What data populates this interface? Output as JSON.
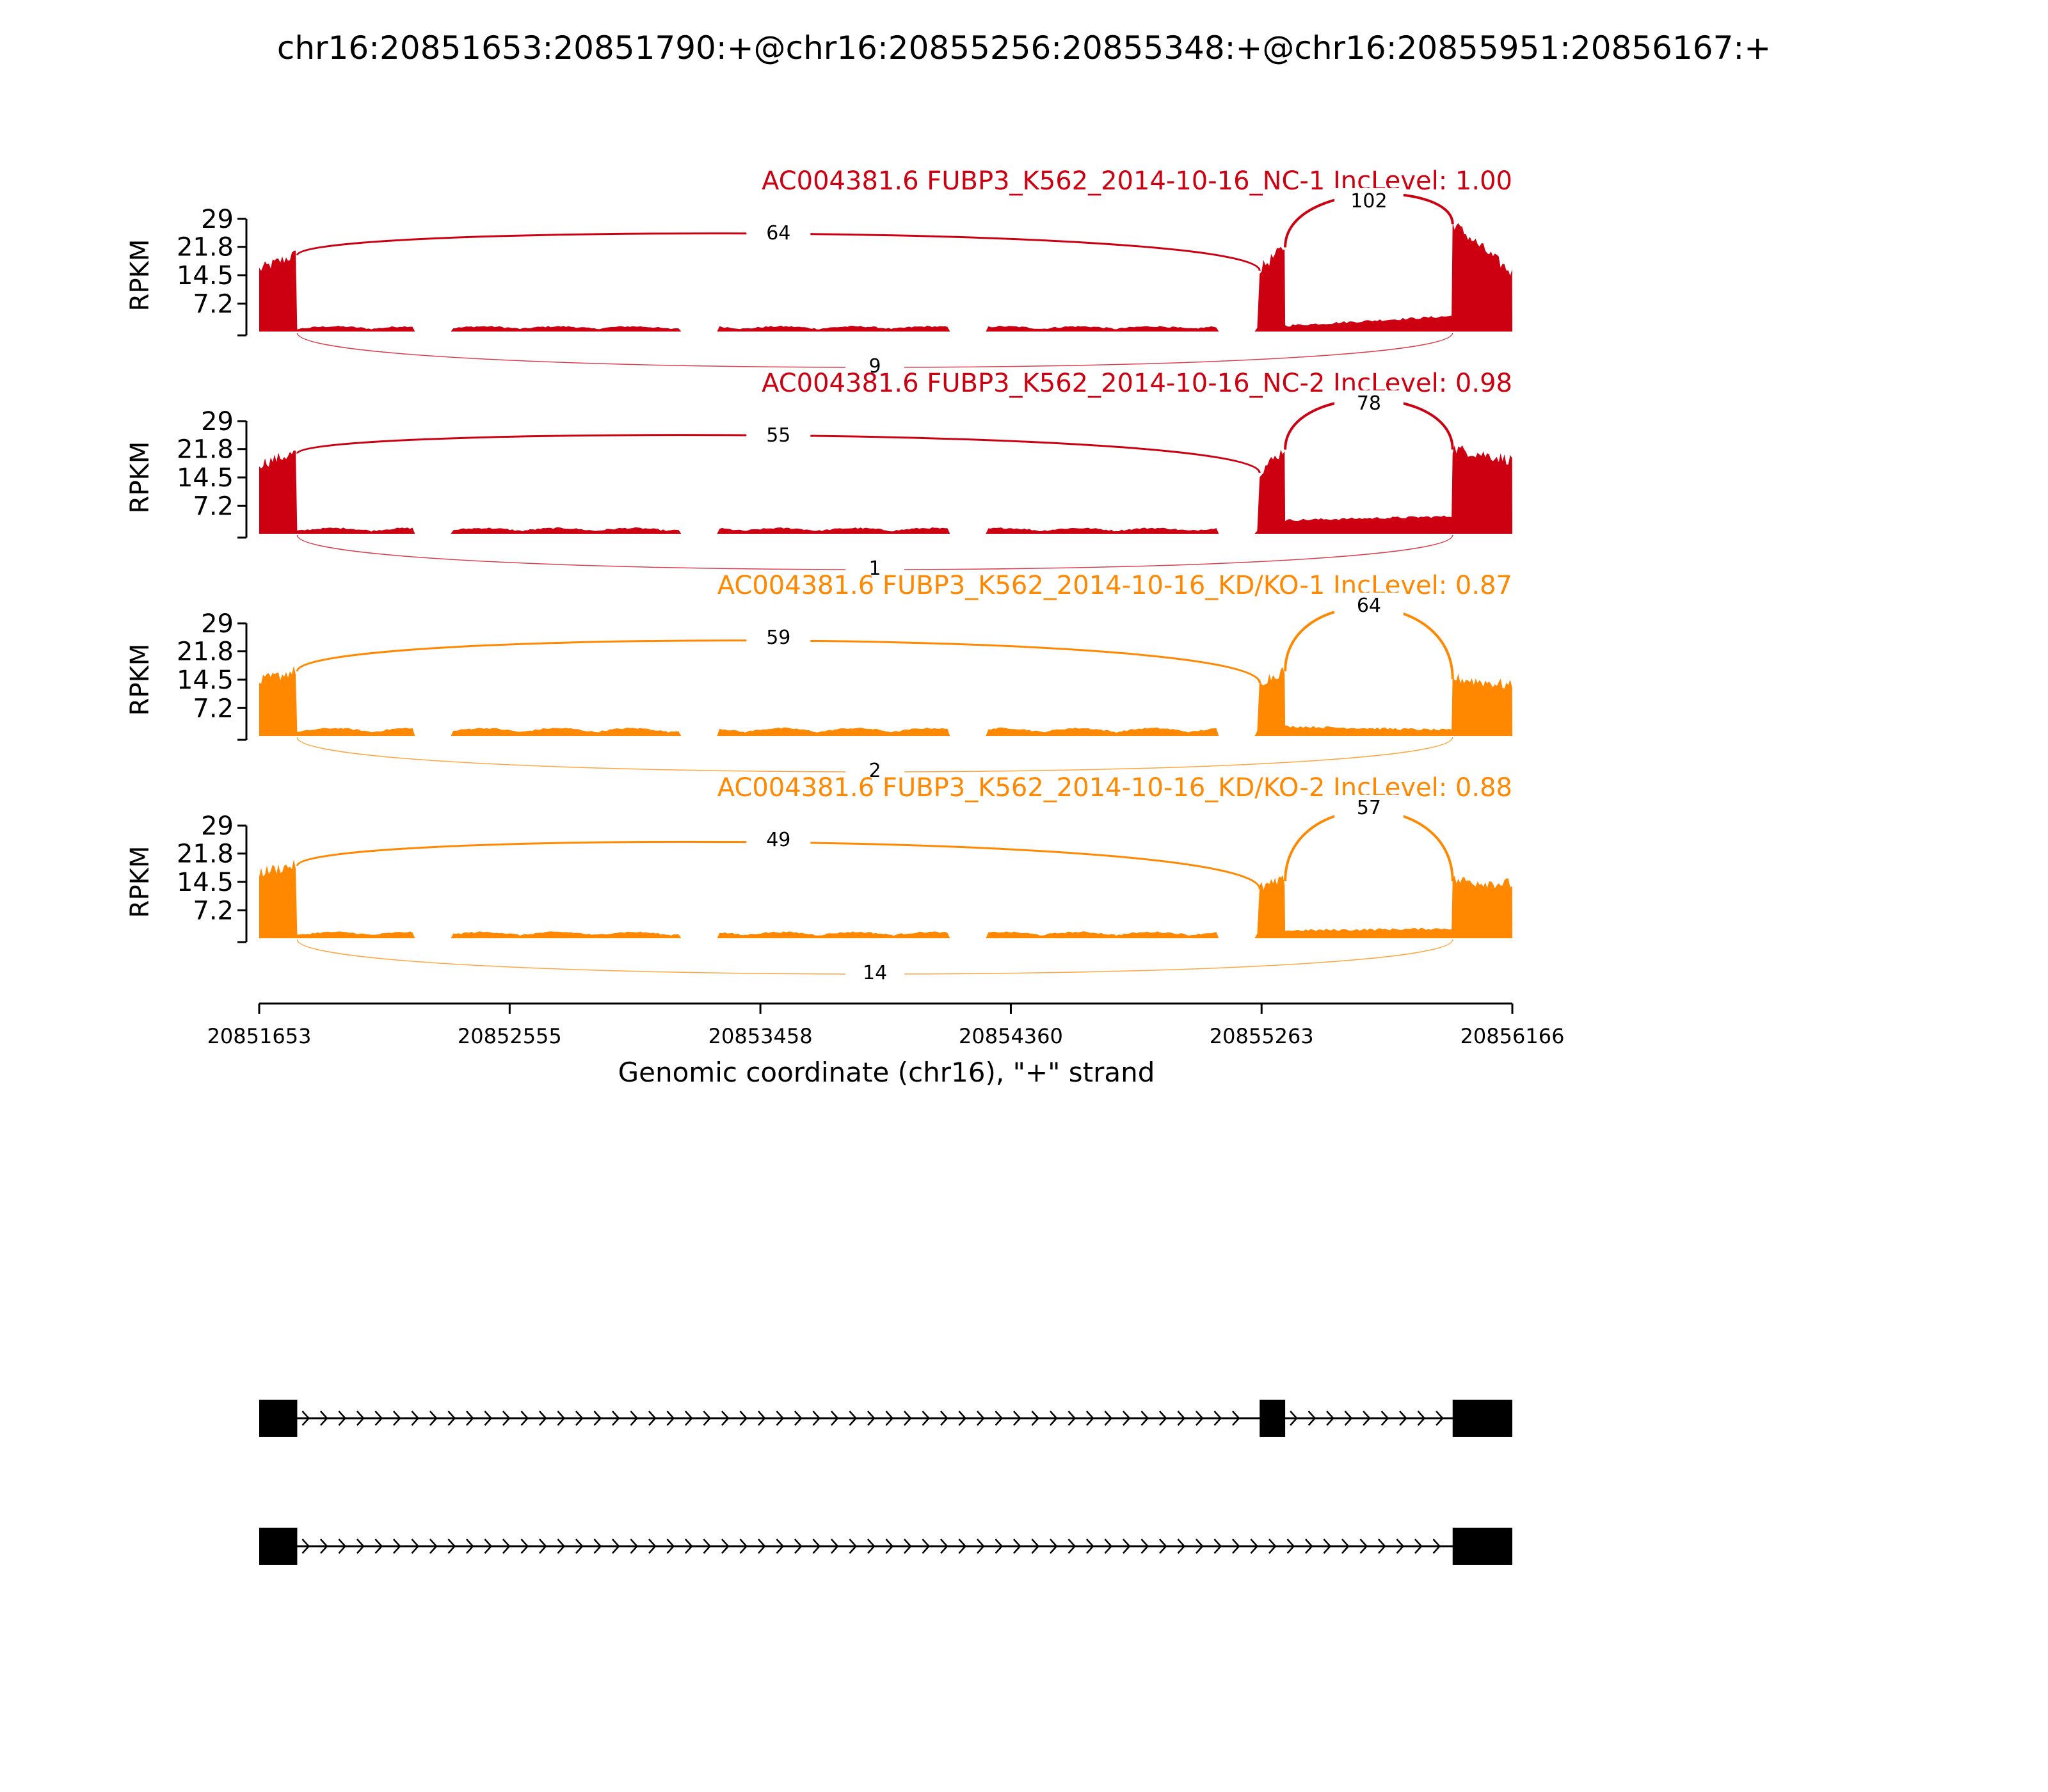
{
  "title": "chr16:20851653:20851790:+@chr16:20855256:20855348:+@chr16:20855951:20856167:+",
  "colors": {
    "nc": "#cc0011",
    "kd": "#ff8800",
    "axis": "#000000",
    "gene": "#000000"
  },
  "chart_data": {
    "type": "area",
    "title": "chr16:20851653:20851790:+@chr16:20855256:20855348:+@chr16:20855951:20856167:+",
    "xlabel": "Genomic coordinate (chr16), \"+\" strand",
    "ylabel": "RPKM",
    "xlim": [
      20851653,
      20856166
    ],
    "xticks": [
      "20851653",
      "20852555",
      "20853458",
      "20854360",
      "20855263",
      "20856166"
    ],
    "ylim": [
      0,
      29
    ],
    "yticks": [
      "29",
      "21.8",
      "14.5",
      "7.2"
    ],
    "exons": [
      [
        20851653,
        20851790
      ],
      [
        20855256,
        20855348
      ],
      [
        20855951,
        20856167
      ]
    ],
    "tracks": [
      {
        "name": "AC004381.6 FUBP3_K562_2014-10-16_NC-1 IncLevel: 1.00",
        "color": "#cc0011",
        "junctions": {
          "upstream": "64",
          "downstream": "102",
          "skip": "9"
        },
        "coverage": {
          "exon1": [
            16,
            20
          ],
          "exon2": [
            16,
            22
          ],
          "exon3": [
            28,
            15
          ],
          "intron1_level": 0.8,
          "intron2_level": [
            1.5,
            4.0
          ]
        }
      },
      {
        "name": "AC004381.6 FUBP3_K562_2014-10-16_NC-2 IncLevel: 0.98",
        "color": "#cc0011",
        "junctions": {
          "upstream": "55",
          "downstream": "78",
          "skip": "1"
        },
        "coverage": {
          "exon1": [
            18,
            21
          ],
          "exon2": [
            16,
            22
          ],
          "exon3": [
            22,
            19
          ],
          "intron1_level": 0.9,
          "intron2_level": [
            3.5,
            4.5
          ]
        }
      },
      {
        "name": "AC004381.6 FUBP3_K562_2014-10-16_KD/KO-1 IncLevel: 0.87",
        "color": "#ff8800",
        "junctions": {
          "upstream": "59",
          "downstream": "64",
          "skip": "2"
        },
        "coverage": {
          "exon1": [
            14,
            17
          ],
          "exon2": [
            14,
            17
          ],
          "exon3": [
            15,
            13
          ],
          "intron1_level": 1.3,
          "intron2_level": [
            2.5,
            1.5
          ]
        }
      },
      {
        "name": "AC004381.6 FUBP3_K562_2014-10-16_KD/KO-2 IncLevel: 0.88",
        "color": "#ff8800",
        "junctions": {
          "upstream": "49",
          "downstream": "57",
          "skip": "14"
        },
        "coverage": {
          "exon1": [
            17,
            19
          ],
          "exon2": [
            13,
            15
          ],
          "exon3": [
            15,
            14
          ],
          "intron1_level": 1.0,
          "intron2_level": [
            2.0,
            2.5
          ]
        }
      }
    ],
    "isoforms": [
      {
        "exons": [
          [
            20851653,
            20851790
          ],
          [
            20855256,
            20855348
          ],
          [
            20855951,
            20856167
          ]
        ]
      },
      {
        "exons": [
          [
            20851653,
            20851790
          ],
          [
            20855951,
            20856167
          ]
        ]
      }
    ]
  }
}
